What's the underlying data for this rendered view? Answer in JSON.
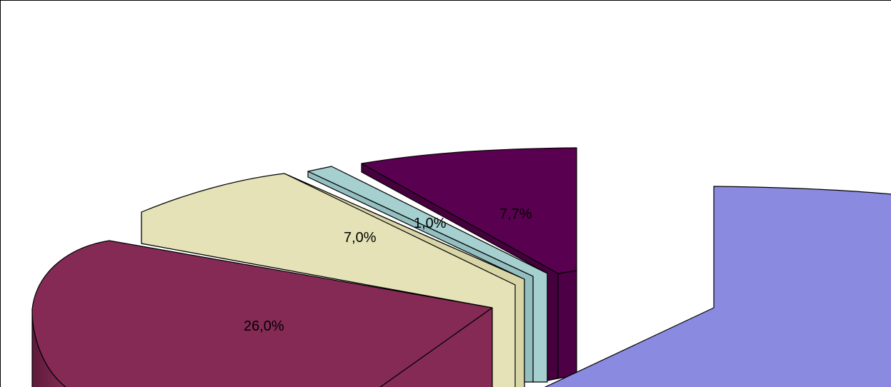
{
  "chart_data": {
    "type": "pie",
    "labels": [
      "26,0%",
      "7,0%",
      "1,0%",
      "7,7%"
    ],
    "slices": [
      {
        "value": 26.0,
        "label": "26,0%",
        "color": "#842A55"
      },
      {
        "value": 7.0,
        "label": "7,0%",
        "color": "#E4E2B6"
      },
      {
        "value": 1.0,
        "label": "1,0%",
        "color": "#A6CFD0"
      },
      {
        "value": 7.7,
        "label": "7,7%",
        "color": "#5A0050"
      },
      {
        "value": 58.3,
        "label": "",
        "color": "#8A8AE0"
      }
    ],
    "style": "3d-exploded",
    "legend": "none"
  }
}
